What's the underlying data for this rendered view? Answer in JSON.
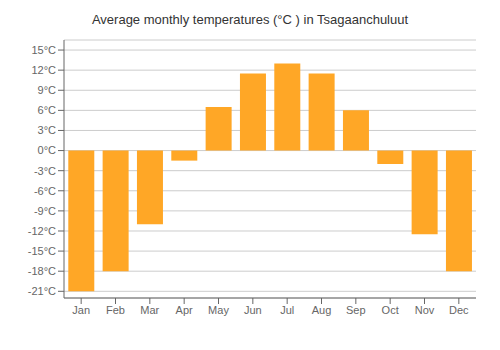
{
  "chart_data": {
    "type": "bar",
    "title": "Average monthly temperatures (°C ) in Tsagaanchuluut",
    "categories": [
      "Jan",
      "Feb",
      "Mar",
      "Apr",
      "May",
      "Jun",
      "Jul",
      "Aug",
      "Sep",
      "Oct",
      "Nov",
      "Dec"
    ],
    "values": [
      -21,
      -18,
      -11,
      -1.5,
      6.5,
      11.5,
      13,
      11.5,
      6,
      -2,
      -12.5,
      -18
    ],
    "color": "#FFA726",
    "ylim": [
      -22,
      16.5
    ],
    "yticks": [
      {
        "value": -21,
        "label": "-21°C"
      },
      {
        "value": -18,
        "label": "-18°C"
      },
      {
        "value": -15,
        "label": "-15°C"
      },
      {
        "value": -12,
        "label": "-12°C"
      },
      {
        "value": -9,
        "label": "-9°C"
      },
      {
        "value": -6,
        "label": "-6°C"
      },
      {
        "value": -3,
        "label": "-3°C"
      },
      {
        "value": 0,
        "label": "0°C"
      },
      {
        "value": 3,
        "label": "3°C"
      },
      {
        "value": 6,
        "label": "6°C"
      },
      {
        "value": 9,
        "label": "9°C"
      },
      {
        "value": 12,
        "label": "12°C"
      },
      {
        "value": 15,
        "label": "15°C"
      }
    ],
    "grid": true
  }
}
